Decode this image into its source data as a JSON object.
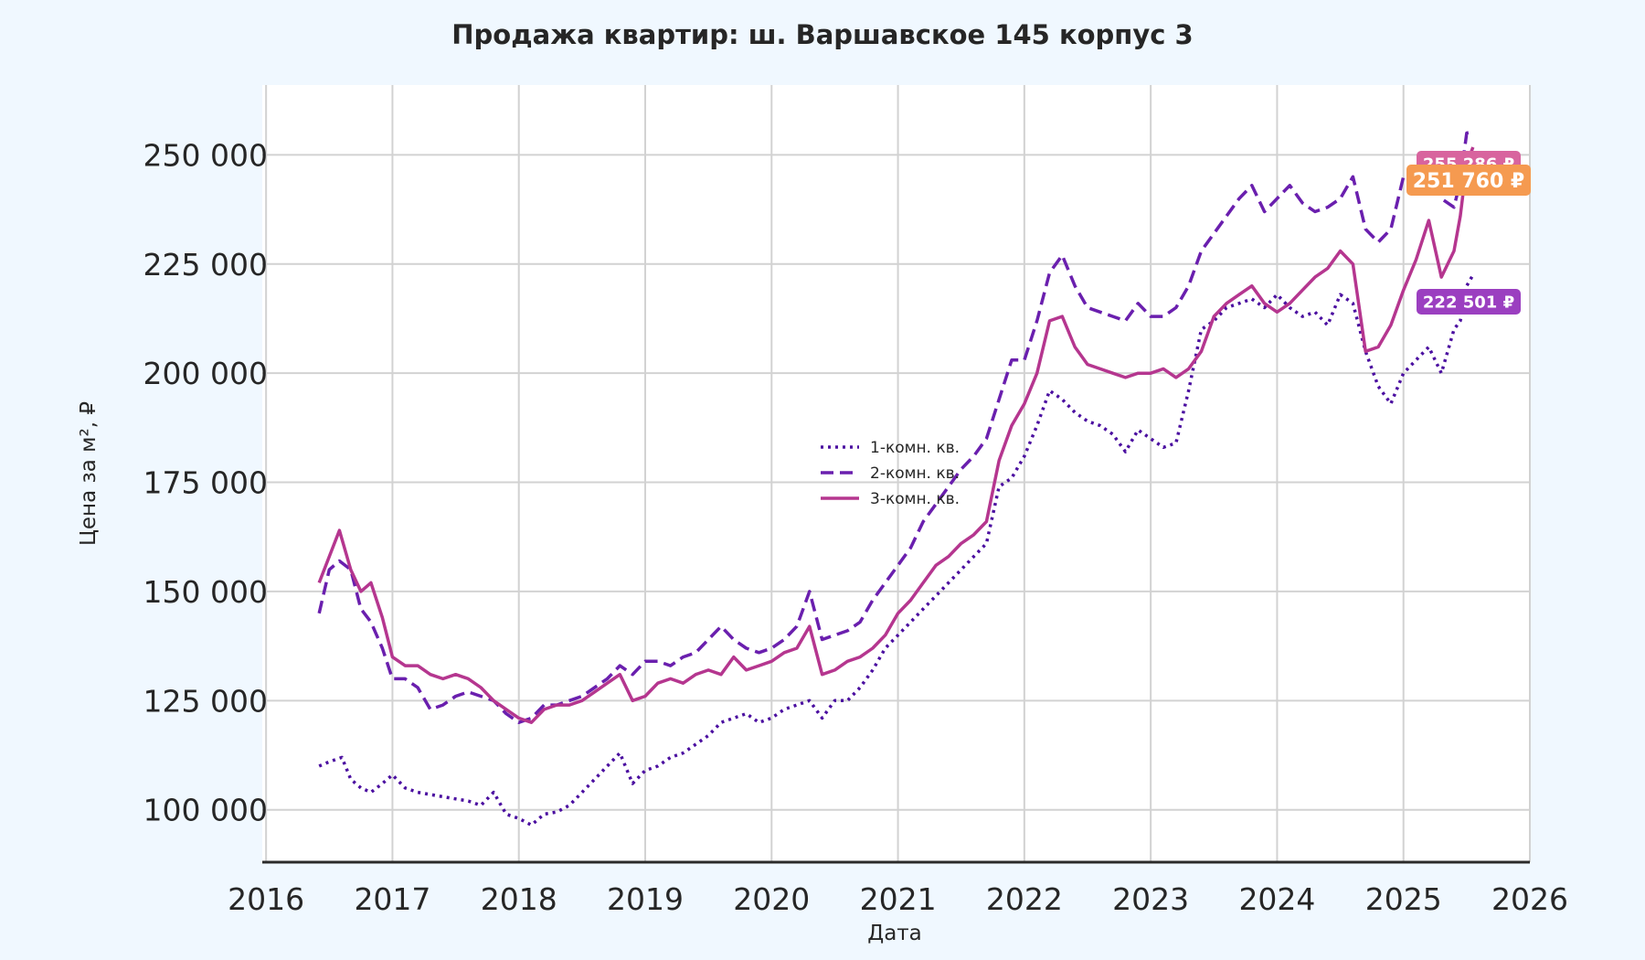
{
  "chart_data": {
    "type": "line",
    "title": "Продажа квартир: ш. Варшавское 145 корпус 3",
    "xlabel": "Дата",
    "ylabel": "Цена за м², ₽",
    "xlim": [
      2016.0,
      2026.0
    ],
    "ylim": [
      88000,
      266000
    ],
    "x_ticks": [
      2016,
      2017,
      2018,
      2019,
      2020,
      2021,
      2022,
      2023,
      2024,
      2025,
      2026
    ],
    "x_tick_labels": [
      "2016",
      "2017",
      "2018",
      "2019",
      "2020",
      "2021",
      "2022",
      "2023",
      "2024",
      "2025",
      "2026"
    ],
    "y_ticks": [
      100000,
      125000,
      150000,
      175000,
      200000,
      225000,
      250000
    ],
    "y_tick_labels": [
      "100 000",
      "125 000",
      "150 000",
      "175 000",
      "200 000",
      "225 000",
      "250 000"
    ],
    "grid": true,
    "legend_position": "center",
    "series": [
      {
        "name": "1-комн. кв.",
        "style": "dotted",
        "color": "#4b0fa0",
        "x": [
          2016.42,
          2016.5,
          2016.6,
          2016.67,
          2016.75,
          2016.83,
          2016.92,
          2017.0,
          2017.1,
          2017.2,
          2017.3,
          2017.4,
          2017.5,
          2017.6,
          2017.7,
          2017.8,
          2017.9,
          2018.0,
          2018.1,
          2018.2,
          2018.3,
          2018.4,
          2018.5,
          2018.6,
          2018.7,
          2018.8,
          2018.9,
          2019.0,
          2019.1,
          2019.2,
          2019.3,
          2019.4,
          2019.5,
          2019.6,
          2019.7,
          2019.8,
          2019.9,
          2020.0,
          2020.1,
          2020.2,
          2020.3,
          2020.4,
          2020.5,
          2020.6,
          2020.7,
          2020.8,
          2020.9,
          2021.0,
          2021.1,
          2021.2,
          2021.3,
          2021.4,
          2021.5,
          2021.6,
          2021.7,
          2021.8,
          2021.9,
          2022.0,
          2022.1,
          2022.2,
          2022.3,
          2022.4,
          2022.5,
          2022.6,
          2022.7,
          2022.8,
          2022.9,
          2023.0,
          2023.1,
          2023.2,
          2023.3,
          2023.4,
          2023.5,
          2023.6,
          2023.7,
          2023.8,
          2023.9,
          2024.0,
          2024.1,
          2024.2,
          2024.3,
          2024.4,
          2024.5,
          2024.6,
          2024.7,
          2024.8,
          2024.9,
          2025.0,
          2025.1,
          2025.2,
          2025.3,
          2025.4,
          2025.45,
          2025.5,
          2025.55
        ],
        "y": [
          110000,
          111000,
          112000,
          107000,
          105000,
          104000,
          106000,
          108000,
          105000,
          104000,
          103500,
          103000,
          102500,
          102000,
          101000,
          104000,
          99000,
          98000,
          96500,
          99000,
          99500,
          101000,
          104000,
          107000,
          110000,
          113000,
          106000,
          109000,
          110000,
          112000,
          113000,
          115000,
          117000,
          120000,
          121000,
          122000,
          120000,
          121000,
          123000,
          124000,
          125000,
          121000,
          125000,
          125000,
          128000,
          132000,
          137000,
          140000,
          143000,
          146000,
          149000,
          152000,
          155000,
          158000,
          161000,
          174000,
          176000,
          181000,
          188000,
          196000,
          194000,
          191000,
          189000,
          188000,
          186000,
          182000,
          187000,
          185000,
          183000,
          184000,
          196000,
          210000,
          212000,
          215000,
          216000,
          217000,
          215000,
          218000,
          215000,
          213000,
          214000,
          211000,
          218000,
          216000,
          205000,
          197000,
          193000,
          200000,
          203000,
          206000,
          200000,
          210000,
          212000,
          220000,
          222501
        ]
      },
      {
        "name": "2-комн. кв.",
        "style": "dashed",
        "color": "#6a1fae",
        "x": [
          2016.42,
          2016.5,
          2016.58,
          2016.67,
          2016.75,
          2016.83,
          2016.92,
          2017.0,
          2017.1,
          2017.2,
          2017.3,
          2017.4,
          2017.5,
          2017.6,
          2017.7,
          2017.8,
          2017.9,
          2018.0,
          2018.1,
          2018.2,
          2018.3,
          2018.4,
          2018.5,
          2018.6,
          2018.7,
          2018.8,
          2018.9,
          2019.0,
          2019.1,
          2019.2,
          2019.3,
          2019.4,
          2019.5,
          2019.6,
          2019.7,
          2019.8,
          2019.9,
          2020.0,
          2020.1,
          2020.2,
          2020.3,
          2020.4,
          2020.5,
          2020.6,
          2020.7,
          2020.8,
          2020.9,
          2021.0,
          2021.1,
          2021.2,
          2021.3,
          2021.4,
          2021.5,
          2021.6,
          2021.7,
          2021.8,
          2021.9,
          2022.0,
          2022.1,
          2022.2,
          2022.3,
          2022.4,
          2022.5,
          2022.6,
          2022.7,
          2022.8,
          2022.9,
          2023.0,
          2023.1,
          2023.2,
          2023.3,
          2023.4,
          2023.5,
          2023.6,
          2023.7,
          2023.8,
          2023.9,
          2024.0,
          2024.1,
          2024.2,
          2024.3,
          2024.4,
          2024.5,
          2024.6,
          2024.7,
          2024.8,
          2024.9,
          2025.0,
          2025.1,
          2025.2,
          2025.3,
          2025.4,
          2025.45,
          2025.5,
          2025.55
        ],
        "y": [
          145000,
          155000,
          157000,
          155000,
          146000,
          143000,
          137000,
          130000,
          130000,
          128000,
          123000,
          124000,
          126000,
          127000,
          126000,
          125000,
          122000,
          120000,
          121000,
          124000,
          124000,
          125000,
          126000,
          128000,
          130000,
          133000,
          131000,
          134000,
          134000,
          133000,
          135000,
          136000,
          139000,
          142000,
          139000,
          137000,
          136000,
          137000,
          139000,
          142000,
          150000,
          139000,
          140000,
          141000,
          143000,
          148000,
          152000,
          156000,
          160000,
          166000,
          170000,
          174000,
          178000,
          181000,
          185000,
          194000,
          203000,
          203000,
          212000,
          223000,
          227000,
          220000,
          215000,
          214000,
          213000,
          212000,
          216000,
          213000,
          213000,
          215000,
          220000,
          228000,
          232000,
          236000,
          240000,
          243000,
          237000,
          240000,
          243000,
          239000,
          237000,
          238000,
          240000,
          245000,
          233000,
          230000,
          233000,
          245000,
          247000,
          250000,
          240000,
          238000,
          244000,
          255000,
          255286
        ]
      },
      {
        "name": "3-комн. кв.",
        "style": "solid",
        "color": "#b5368f",
        "x": [
          2016.42,
          2016.5,
          2016.58,
          2016.67,
          2016.75,
          2016.83,
          2016.92,
          2017.0,
          2017.1,
          2017.2,
          2017.3,
          2017.4,
          2017.5,
          2017.6,
          2017.7,
          2017.8,
          2017.9,
          2018.0,
          2018.1,
          2018.2,
          2018.3,
          2018.4,
          2018.5,
          2018.6,
          2018.7,
          2018.8,
          2018.9,
          2019.0,
          2019.1,
          2019.2,
          2019.3,
          2019.4,
          2019.5,
          2019.6,
          2019.7,
          2019.8,
          2019.9,
          2020.0,
          2020.1,
          2020.2,
          2020.3,
          2020.4,
          2020.5,
          2020.6,
          2020.7,
          2020.8,
          2020.9,
          2021.0,
          2021.1,
          2021.2,
          2021.3,
          2021.4,
          2021.5,
          2021.6,
          2021.7,
          2021.8,
          2021.9,
          2022.0,
          2022.1,
          2022.2,
          2022.3,
          2022.4,
          2022.5,
          2022.6,
          2022.7,
          2022.8,
          2022.9,
          2023.0,
          2023.1,
          2023.2,
          2023.3,
          2023.4,
          2023.5,
          2023.6,
          2023.7,
          2023.8,
          2023.9,
          2024.0,
          2024.1,
          2024.2,
          2024.3,
          2024.4,
          2024.5,
          2024.6,
          2024.7,
          2024.8,
          2024.9,
          2025.0,
          2025.1,
          2025.2,
          2025.3,
          2025.4,
          2025.45,
          2025.5,
          2025.55
        ],
        "y": [
          152000,
          158000,
          164000,
          155000,
          150000,
          152000,
          144000,
          135000,
          133000,
          133000,
          131000,
          130000,
          131000,
          130000,
          128000,
          125000,
          123000,
          121000,
          120000,
          123000,
          124000,
          124000,
          125000,
          127000,
          129000,
          131000,
          125000,
          126000,
          129000,
          130000,
          129000,
          131000,
          132000,
          131000,
          135000,
          132000,
          133000,
          134000,
          136000,
          137000,
          142000,
          131000,
          132000,
          134000,
          135000,
          137000,
          140000,
          145000,
          148000,
          152000,
          156000,
          158000,
          161000,
          163000,
          166000,
          180000,
          188000,
          193000,
          200000,
          212000,
          213000,
          206000,
          202000,
          201000,
          200000,
          199000,
          200000,
          200000,
          201000,
          199000,
          201000,
          205000,
          213000,
          216000,
          218000,
          220000,
          216000,
          214000,
          216000,
          219000,
          222000,
          224000,
          228000,
          225000,
          205000,
          206000,
          211000,
          219000,
          226000,
          235000,
          222000,
          228000,
          236000,
          248000,
          251760
        ]
      }
    ],
    "end_labels": [
      {
        "series": "2-комн. кв.",
        "text": "255 286 ₽",
        "value": 255286,
        "color": "#d8649e"
      },
      {
        "series": "3-комн. кв.",
        "text": "251 760 ₽",
        "value": 251760,
        "color": "#f59a50"
      },
      {
        "series": "1-комн. кв.",
        "text": "222 501 ₽",
        "value": 222501,
        "color": "#9b3fc0"
      }
    ]
  }
}
